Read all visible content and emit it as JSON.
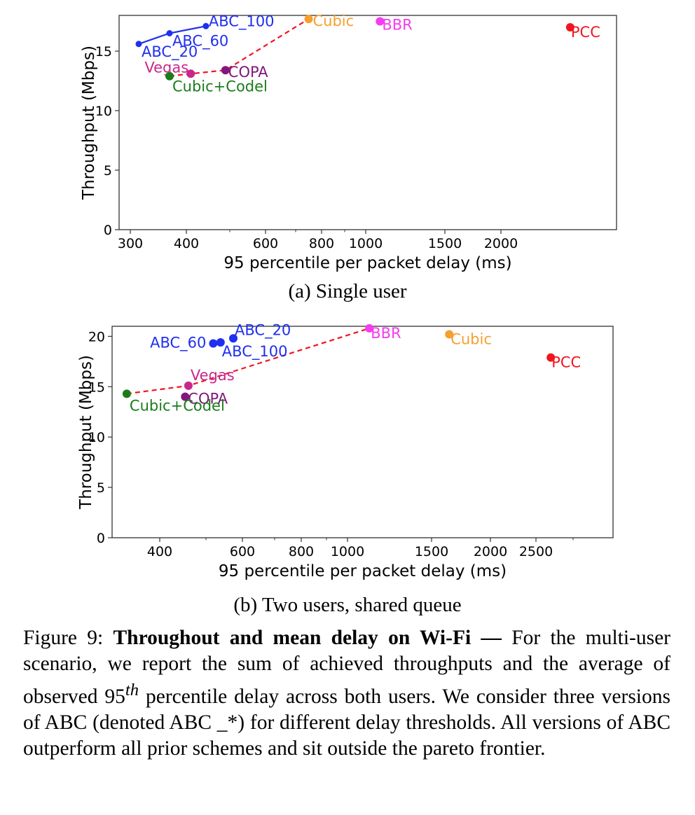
{
  "chart_data": [
    {
      "type": "scatter",
      "subcaption": "(a) Single user",
      "xlabel": "95 percentile per packet delay (ms)",
      "ylabel": "Throughput (Mbps)",
      "xticks": [
        300,
        400,
        600,
        800,
        1000,
        1500,
        2000
      ],
      "xtick_labels": [
        "300",
        "400",
        "600",
        "800",
        "1000",
        "1500",
        "2000"
      ],
      "xminor_ticks": [
        500,
        700,
        900
      ],
      "xlim": [
        285,
        3000
      ],
      "yticks": [
        0,
        5,
        10,
        15
      ],
      "ylim": [
        0,
        18
      ],
      "grid": false,
      "points": [
        {
          "name": "ABC_20",
          "x": 315,
          "y": 15.6,
          "color": "#1f2ff0"
        },
        {
          "name": "ABC_60",
          "x": 370,
          "y": 16.5,
          "color": "#1f2ff0"
        },
        {
          "name": "ABC_100",
          "x": 445,
          "y": 17.1,
          "color": "#1f2ff0"
        },
        {
          "name": "Cubic",
          "x": 750,
          "y": 17.7,
          "color": "#f5a030"
        },
        {
          "name": "BBR",
          "x": 1090,
          "y": 17.5,
          "color": "#f53cf0"
        },
        {
          "name": "PCC",
          "x": 2700,
          "y": 17.0,
          "color": "#f01520"
        },
        {
          "name": "Vegas",
          "x": 410,
          "y": 13.1,
          "color": "#c8288c"
        },
        {
          "name": "COPA",
          "x": 490,
          "y": 13.4,
          "color": "#80187e"
        },
        {
          "name": "Cubic+Codel",
          "x": 370,
          "y": 12.9,
          "color": "#1a7d1a"
        }
      ],
      "abc_line": [
        "ABC_20",
        "ABC_60",
        "ABC_100"
      ],
      "pareto_frontier": [
        "Cubic+Codel",
        "Vegas",
        "COPA",
        "Cubic"
      ]
    },
    {
      "type": "scatter",
      "subcaption": "(b) Two users, shared queue",
      "xlabel": "95 percentile per packet delay (ms)",
      "ylabel": "Throughput (Mbps)",
      "xticks": [
        400,
        600,
        800,
        1000,
        1500,
        2000,
        2500
      ],
      "xtick_labels": [
        "400",
        "600",
        "800",
        "1000",
        "1500",
        "2000",
        "2500"
      ],
      "xminor_ticks": [
        500,
        700,
        900,
        3000
      ],
      "xlim": [
        335,
        3300
      ],
      "yticks": [
        0,
        5,
        10,
        15,
        20
      ],
      "ylim": [
        0,
        21
      ],
      "grid": false,
      "points": [
        {
          "name": "ABC_60",
          "x": 520,
          "y": 19.3,
          "color": "#1f2ff0"
        },
        {
          "name": "ABC_100",
          "x": 540,
          "y": 19.4,
          "color": "#1f2ff0"
        },
        {
          "name": "ABC_20",
          "x": 575,
          "y": 19.8,
          "color": "#1f2ff0"
        },
        {
          "name": "BBR",
          "x": 1130,
          "y": 20.8,
          "color": "#f53cf0"
        },
        {
          "name": "Cubic",
          "x": 1650,
          "y": 20.2,
          "color": "#f5a030"
        },
        {
          "name": "PCC",
          "x": 2700,
          "y": 17.9,
          "color": "#f01520"
        },
        {
          "name": "Vegas",
          "x": 462,
          "y": 15.1,
          "color": "#c8288c"
        },
        {
          "name": "COPA",
          "x": 455,
          "y": 14.0,
          "color": "#80187e"
        },
        {
          "name": "Cubic+Codel",
          "x": 355,
          "y": 14.3,
          "color": "#1a7d1a"
        }
      ],
      "abc_line": [],
      "pareto_frontier": [
        "Cubic+Codel",
        "Vegas",
        "BBR"
      ]
    }
  ],
  "caption": {
    "figure_label": "Figure 9:",
    "title_bold": "Throughout and mean delay on Wi-Fi —",
    "text_1": " For the multi-user scenario, we report the sum of achieved throughputs and the average of observed 95",
    "superscript": "th",
    "text_2": " percentile delay across both users. We consider three versions of ABC (denoted ABC _*) for different delay thresholds. All versions of ABC outperform all prior schemes and sit outside the pareto frontier."
  }
}
